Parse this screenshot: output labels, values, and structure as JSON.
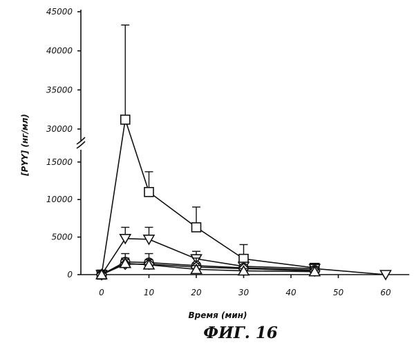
{
  "figure": {
    "caption": "ФИГ. 16"
  },
  "chart_data": {
    "type": "line",
    "xlabel": "Время (мин)",
    "ylabel": "[PYY] (нг/мл)",
    "xlim": [
      -10,
      65
    ],
    "ylim_lower": [
      0,
      17000
    ],
    "ylim_upper": [
      30000,
      45000
    ],
    "axis_break": true,
    "x_ticks": [
      0,
      10,
      20,
      30,
      40,
      50,
      60
    ],
    "x_tick_labels": [
      "0",
      "10",
      "20",
      "30",
      "40",
      "50",
      "60"
    ],
    "y_ticks": [
      0,
      5000,
      10000,
      15000,
      30000,
      35000,
      40000,
      45000
    ],
    "y_tick_labels": [
      "0",
      "5000",
      "10000",
      "15000",
      "30000",
      "35000",
      "40000",
      "45000"
    ],
    "grid": false,
    "series": [
      {
        "marker": "square",
        "x": [
          0,
          5,
          10,
          20,
          30,
          45
        ],
        "y": [
          0,
          31200,
          11000,
          6300,
          2100,
          900
        ],
        "error_upper": [
          0,
          43300,
          13700,
          9000,
          4000,
          1100
        ]
      },
      {
        "marker": "triangle-down",
        "x": [
          0,
          5,
          10,
          20,
          30,
          45,
          60
        ],
        "y": [
          0,
          4800,
          4700,
          2100,
          1100,
          800,
          0
        ],
        "error_upper": [
          0,
          6300,
          6300,
          3100,
          1500,
          1100,
          0
        ]
      },
      {
        "marker": "circle",
        "x": [
          0,
          5,
          10,
          20,
          30,
          45
        ],
        "y": [
          0,
          1700,
          1600,
          1200,
          900,
          600
        ],
        "error_upper": [
          0,
          2800,
          2800,
          2200,
          1200,
          800
        ]
      },
      {
        "marker": "diamond",
        "x": [
          0,
          5,
          10,
          20,
          30,
          45
        ],
        "y": [
          0,
          1400,
          1400,
          1000,
          800,
          500
        ],
        "error_upper": [
          0,
          2000,
          2000,
          1500,
          1100,
          700
        ]
      },
      {
        "marker": "triangle-up",
        "x": [
          0,
          5,
          10,
          20,
          30,
          45
        ],
        "y": [
          0,
          1500,
          1300,
          700,
          500,
          400
        ],
        "error_upper": [
          0,
          2200,
          2000,
          1200,
          800,
          600
        ]
      }
    ]
  }
}
